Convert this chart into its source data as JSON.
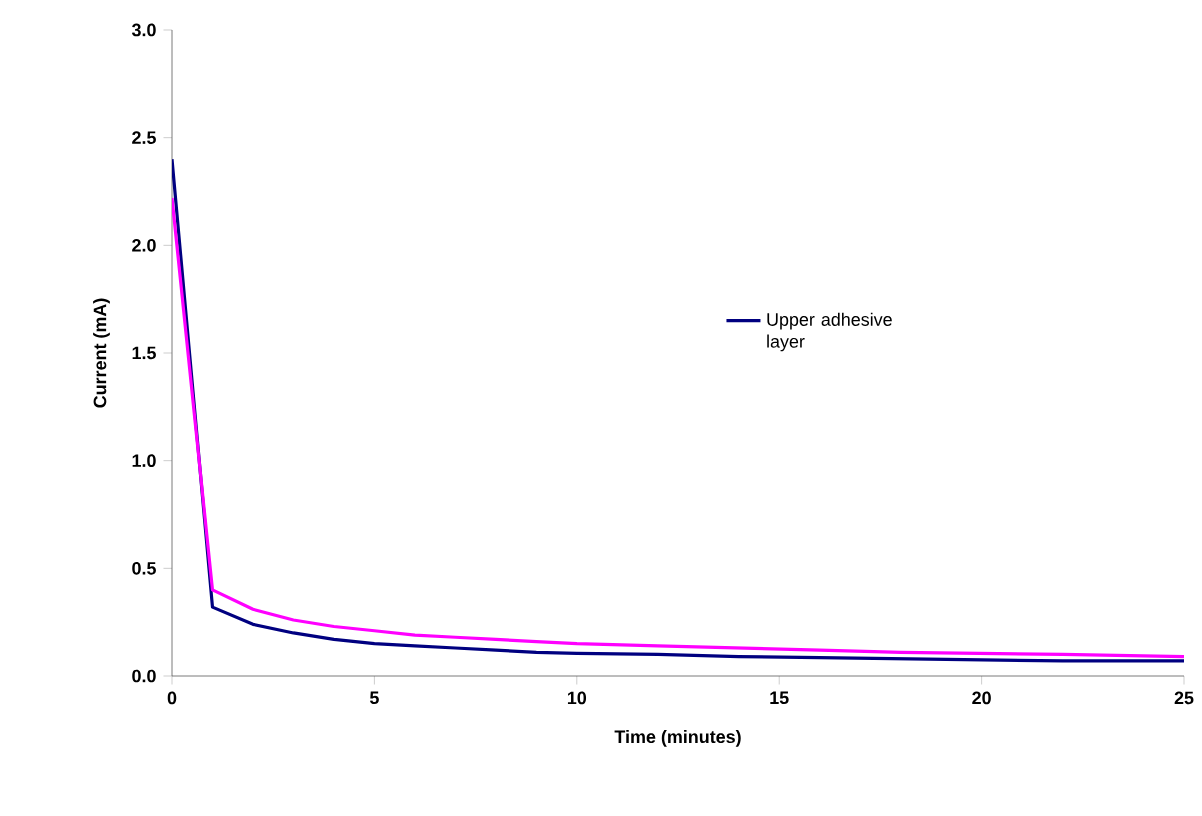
{
  "chart_data": {
    "type": "line",
    "xlabel": "Time (minutes)",
    "ylabel": "Current (mA)",
    "xlim": [
      0,
      25
    ],
    "ylim": [
      0,
      3.0
    ],
    "xticks": [
      0,
      5,
      10,
      15,
      20,
      25
    ],
    "yticks": [
      {
        "value": 0,
        "label": "0.0"
      },
      {
        "value": 0.5,
        "label": "0.5"
      },
      {
        "value": 1,
        "label": "1.0"
      },
      {
        "value": 1.5,
        "label": "1.5"
      },
      {
        "value": 2,
        "label": "2.0"
      },
      {
        "value": 2.5,
        "label": "2.5"
      },
      {
        "value": 3,
        "label": "3.0"
      }
    ],
    "x": [
      0,
      1,
      2,
      3,
      4,
      5,
      6,
      7,
      8,
      9,
      10,
      12,
      14,
      16,
      18,
      20,
      22,
      25
    ],
    "legend": "right",
    "grid": false,
    "marker": "none",
    "series": [
      {
        "name": "Upper adhesive layer",
        "color": "#000080",
        "values": [
          2.4,
          0.32,
          0.24,
          0.2,
          0.17,
          0.15,
          0.14,
          0.13,
          0.12,
          0.11,
          0.105,
          0.1,
          0.09,
          0.085,
          0.08,
          0.075,
          0.07,
          0.07
        ]
      },
      {
        "color": "#ff00ff",
        "values": [
          2.22,
          0.4,
          0.31,
          0.26,
          0.23,
          0.21,
          0.19,
          0.18,
          0.17,
          0.16,
          0.15,
          0.14,
          0.13,
          0.12,
          0.11,
          0.105,
          0.1,
          0.09
        ]
      }
    ]
  }
}
